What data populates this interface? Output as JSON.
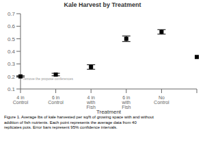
{
  "chart_data": {
    "type": "scatter",
    "title": "Kale Harvest by Treatment",
    "x_label": "Treatment",
    "categories": [
      "4 in Control",
      "6 in Control",
      "4 in with Fish",
      "6 in with Fish",
      "No Control",
      null
    ],
    "values": [
      0.2,
      0.215,
      0.275,
      0.5,
      0.555,
      0.355
    ],
    "errors": [
      0.005,
      0.01,
      0.018,
      0.022,
      0.018,
      0.0
    ],
    "color": "#000000",
    "marker": "square",
    "ylim": [
      0.1,
      0.7
    ],
    "yticks": [
      0.1,
      0.2,
      0.3,
      0.4,
      0.5,
      0.6,
      0.7
    ],
    "grid": false,
    "annotations": [
      "remove the propose conferences"
    ],
    "caption": "Figure 1.  Average lbs of kale harvested per sq/ft of growing space with and without\naddition of fish nutrients.  Each point represents the average data from 40\nreplicates pots.  Error bars represent 95% confidence intervals."
  }
}
